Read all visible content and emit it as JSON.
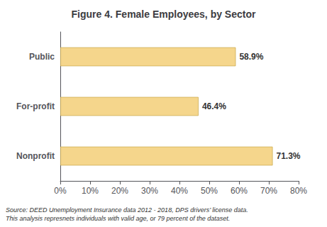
{
  "chart_data": {
    "type": "bar",
    "orientation": "horizontal",
    "title": "Figure 4. Female Employees, by Sector",
    "categories": [
      "Nonprofit",
      "For-profit",
      "Public"
    ],
    "values": [
      71.3,
      46.4,
      58.9
    ],
    "value_labels": [
      "71.3%",
      "46.4%",
      "58.9%"
    ],
    "data_labels": true,
    "color": "#F5D68C",
    "xlim": [
      0,
      80
    ],
    "xticks": [
      {
        "value": 0,
        "label": "0%"
      },
      {
        "value": 10,
        "label": "10%"
      },
      {
        "value": 20,
        "label": "20%"
      },
      {
        "value": 30,
        "label": "30%"
      },
      {
        "value": 40,
        "label": "40%"
      },
      {
        "value": 50,
        "label": "50%"
      },
      {
        "value": 60,
        "label": "60%"
      },
      {
        "value": 70,
        "label": "70%"
      },
      {
        "value": 80,
        "label": "80%"
      }
    ],
    "grid": false,
    "annotations": [
      "Source: DEED Unemployment Insurance data 2012 - 2018, DPS drivers’ license data.\nThis analysis represnets individuals with valid age, or 79 percent of the dataset."
    ]
  }
}
